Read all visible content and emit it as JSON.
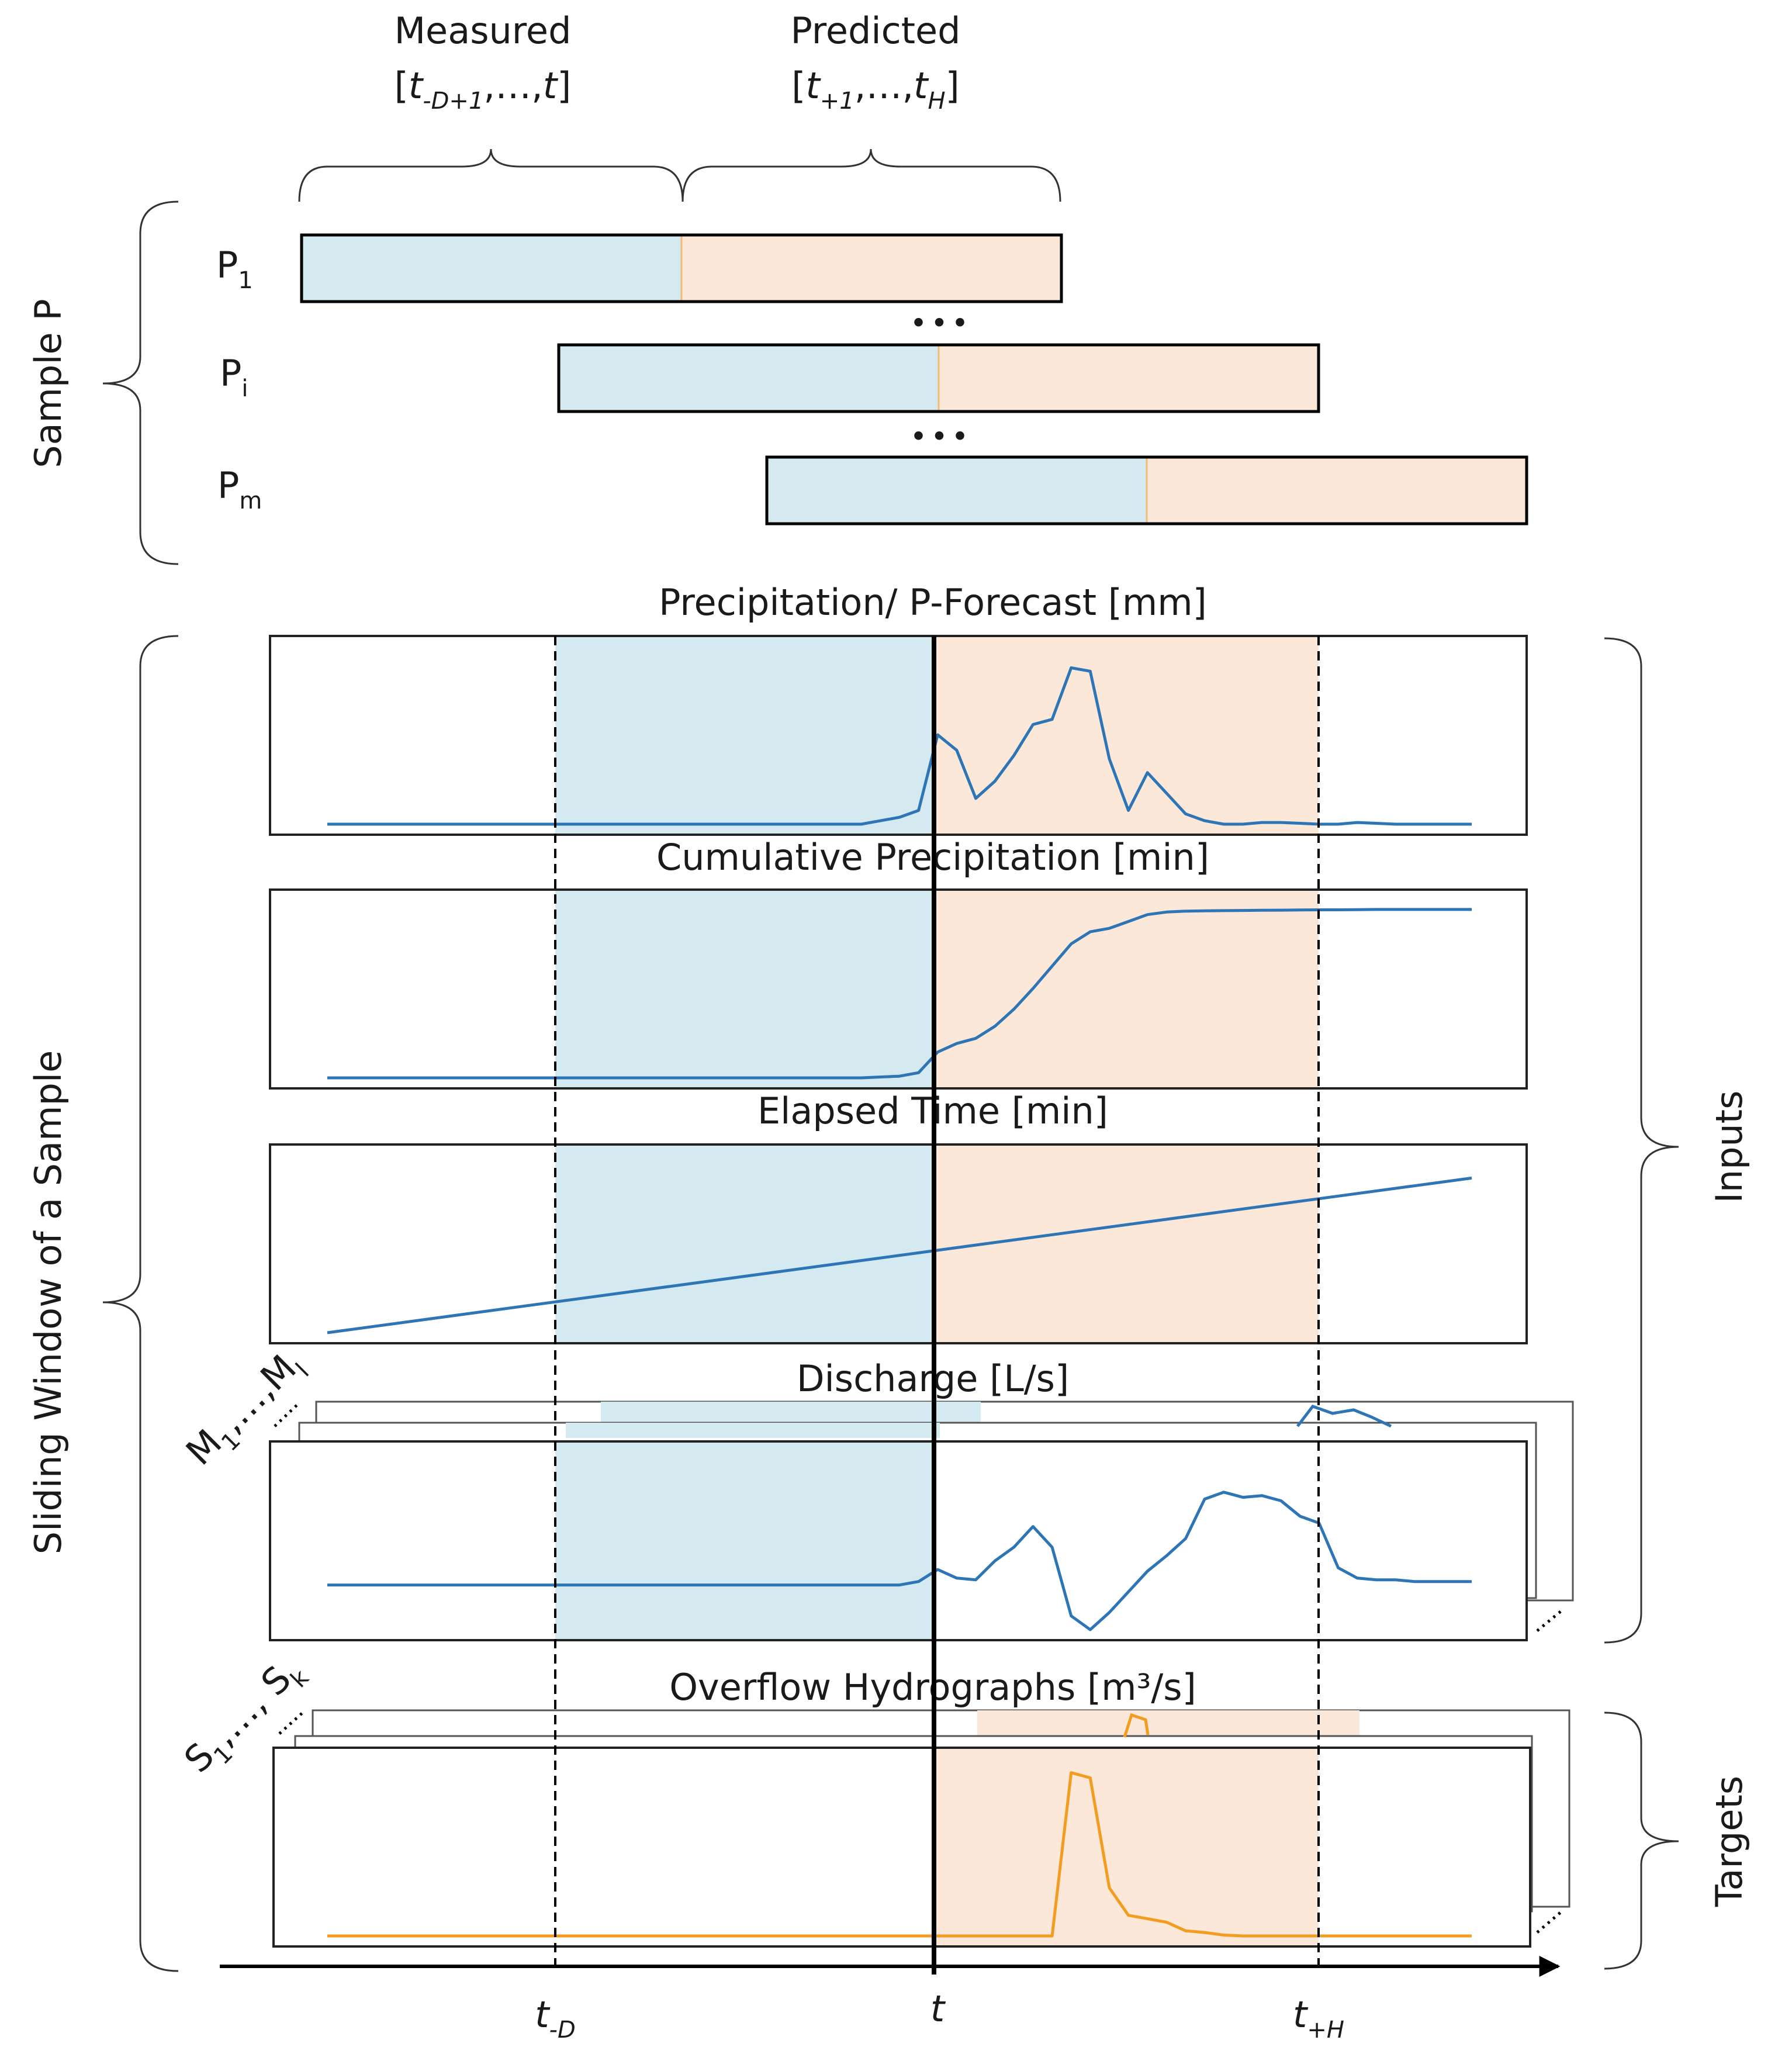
{
  "header": {
    "measured_label": "Measured",
    "measured_range": "[t-D+1,…,t]",
    "predicted_label": "Predicted",
    "predicted_range": "[t+1,…,tH]"
  },
  "samples": {
    "group_label": "Sample P",
    "items": [
      {
        "name": "P",
        "sub": "1"
      },
      {
        "name": "P",
        "sub": "i"
      },
      {
        "name": "P",
        "sub": "m"
      }
    ],
    "ellipsis": "•••"
  },
  "left_label": "Sliding Window of a Sample",
  "right_labels": {
    "inputs": "Inputs",
    "targets": "Targets"
  },
  "stacks": {
    "discharge": {
      "first": "M",
      "first_sub": "1",
      "sep": ",…,",
      "last": "M",
      "last_sub": "l"
    },
    "overflow": {
      "first": "S",
      "first_sub": "1",
      "sep": ",…, ",
      "last": "S",
      "last_sub": "k"
    }
  },
  "time_axis": {
    "t_minus_D": {
      "base": "t",
      "sub": "-D"
    },
    "t": {
      "base": "t"
    },
    "t_plus_H": {
      "base": "t",
      "sub": "+H"
    }
  },
  "colors": {
    "measured_fill": "#d5e9f1",
    "predicted_fill": "#fce8d8",
    "input_line": "#2e75b6",
    "target_line": "#f39c1f",
    "predicted_edge": "#f5b97a"
  },
  "chart_data": [
    {
      "type": "line",
      "title": "Precipitation/ P-Forecast [mm]",
      "xlim": [
        0,
        60
      ],
      "ylim": [
        0,
        10
      ],
      "x": [
        0,
        5,
        10,
        15,
        20,
        25,
        28,
        29,
        30,
        31,
        32,
        33,
        34,
        35,
        36,
        37,
        38,
        39,
        40,
        41,
        42,
        43,
        44,
        45,
        46,
        47,
        48,
        49,
        50,
        51,
        52,
        53,
        54,
        55,
        56,
        57,
        58,
        59,
        60
      ],
      "y": [
        0,
        0,
        0,
        0,
        0,
        0,
        0,
        0.2,
        0.4,
        0.8,
        5.2,
        4.3,
        1.5,
        2.5,
        4.0,
        5.8,
        6.1,
        9.1,
        8.9,
        3.8,
        0.8,
        3.0,
        1.8,
        0.6,
        0.2,
        0,
        0,
        0.1,
        0.1,
        0.05,
        0,
        0,
        0.1,
        0.05,
        0,
        0,
        0,
        0,
        0
      ]
    },
    {
      "type": "line",
      "title": "Cumulative Precipitation [min]",
      "xlim": [
        0,
        60
      ],
      "ylim": [
        0,
        10
      ],
      "x": [
        0,
        5,
        10,
        15,
        20,
        25,
        28,
        29,
        30,
        31,
        32,
        33,
        34,
        35,
        36,
        37,
        38,
        39,
        40,
        41,
        42,
        43,
        44,
        45,
        46,
        47,
        48,
        49,
        50,
        51,
        52,
        53,
        54,
        55,
        56,
        57,
        58,
        59,
        60
      ],
      "y": [
        0,
        0,
        0,
        0,
        0,
        0,
        0,
        0.05,
        0.1,
        0.3,
        1.5,
        2.0,
        2.3,
        3.0,
        4.0,
        5.2,
        6.5,
        7.8,
        8.5,
        8.7,
        9.1,
        9.5,
        9.65,
        9.7,
        9.72,
        9.73,
        9.74,
        9.75,
        9.76,
        9.77,
        9.78,
        9.78,
        9.79,
        9.8,
        9.8,
        9.8,
        9.8,
        9.8,
        9.8
      ]
    },
    {
      "type": "line",
      "title": "Elapsed Time [min]",
      "xlim": [
        0,
        60
      ],
      "ylim": [
        0,
        10
      ],
      "x": [
        0,
        60
      ],
      "y": [
        0,
        9
      ]
    },
    {
      "type": "line",
      "title": "Discharge [L/s]",
      "xlim": [
        0,
        60
      ],
      "ylim": [
        0,
        10
      ],
      "x": [
        0,
        10,
        20,
        28,
        29,
        30,
        31,
        32,
        33,
        34,
        35,
        36,
        37,
        38,
        39,
        40,
        41,
        42,
        43,
        44,
        45,
        46,
        47,
        48,
        49,
        50,
        51,
        52,
        53,
        54,
        55,
        56,
        57,
        58,
        59,
        60
      ],
      "y": [
        2.6,
        2.6,
        2.6,
        2.6,
        2.6,
        2.6,
        2.8,
        3.5,
        3.0,
        2.9,
        4.0,
        4.8,
        6.0,
        4.8,
        0.8,
        0,
        1.0,
        2.2,
        3.4,
        4.3,
        5.3,
        7.6,
        8.0,
        7.7,
        7.8,
        7.5,
        6.6,
        6.2,
        3.6,
        3.0,
        2.9,
        2.9,
        2.8,
        2.8,
        2.8,
        2.8
      ]
    },
    {
      "type": "line",
      "title": "Overflow Hydrographs [m³/s]",
      "xlim": [
        0,
        60
      ],
      "ylim": [
        0,
        10
      ],
      "x": [
        0,
        10,
        20,
        28,
        30,
        35,
        38,
        39,
        40,
        41,
        42,
        43,
        44,
        45,
        46,
        47,
        48,
        49,
        50,
        52,
        55,
        60
      ],
      "y": [
        0,
        0,
        0,
        0,
        0,
        0,
        0,
        9.5,
        9.2,
        2.8,
        1.2,
        1.0,
        0.8,
        0.3,
        0.2,
        0.05,
        0,
        0,
        0,
        0,
        0,
        0
      ]
    }
  ]
}
